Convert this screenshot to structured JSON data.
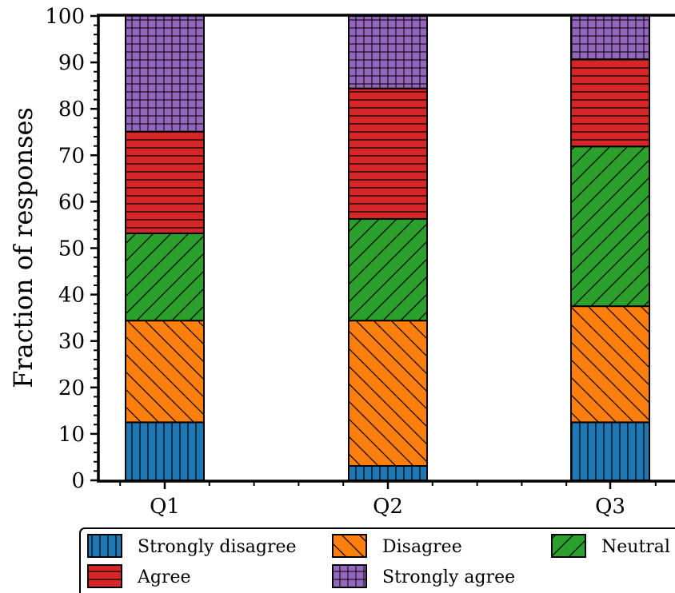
{
  "chart_data": {
    "type": "bar",
    "stacked": true,
    "categories": [
      "Q1",
      "Q2",
      "Q3"
    ],
    "ylabel": "Fraction of responses",
    "xlabel": "",
    "ylim": [
      0,
      100
    ],
    "yticks": [
      0,
      10,
      20,
      30,
      40,
      50,
      60,
      70,
      80,
      90,
      100
    ],
    "grid": false,
    "legend_position": "bottom",
    "series": [
      {
        "name": "Strongly disagree",
        "color": "#1f77b4",
        "hatch": "vertical",
        "values": [
          12.5,
          3.1,
          12.5
        ]
      },
      {
        "name": "Disagree",
        "color": "#ff7f0e",
        "hatch": "backslash",
        "values": [
          21.9,
          31.3,
          25.0
        ]
      },
      {
        "name": "Neutral",
        "color": "#2ca02c",
        "hatch": "slash",
        "values": [
          18.8,
          21.9,
          34.4
        ]
      },
      {
        "name": "Agree",
        "color": "#d62728",
        "hatch": "horizontal",
        "values": [
          21.9,
          28.1,
          18.8
        ]
      },
      {
        "name": "Strongly agree",
        "color": "#9467bd",
        "hatch": "grid",
        "values": [
          25.0,
          15.6,
          9.4
        ]
      }
    ]
  }
}
